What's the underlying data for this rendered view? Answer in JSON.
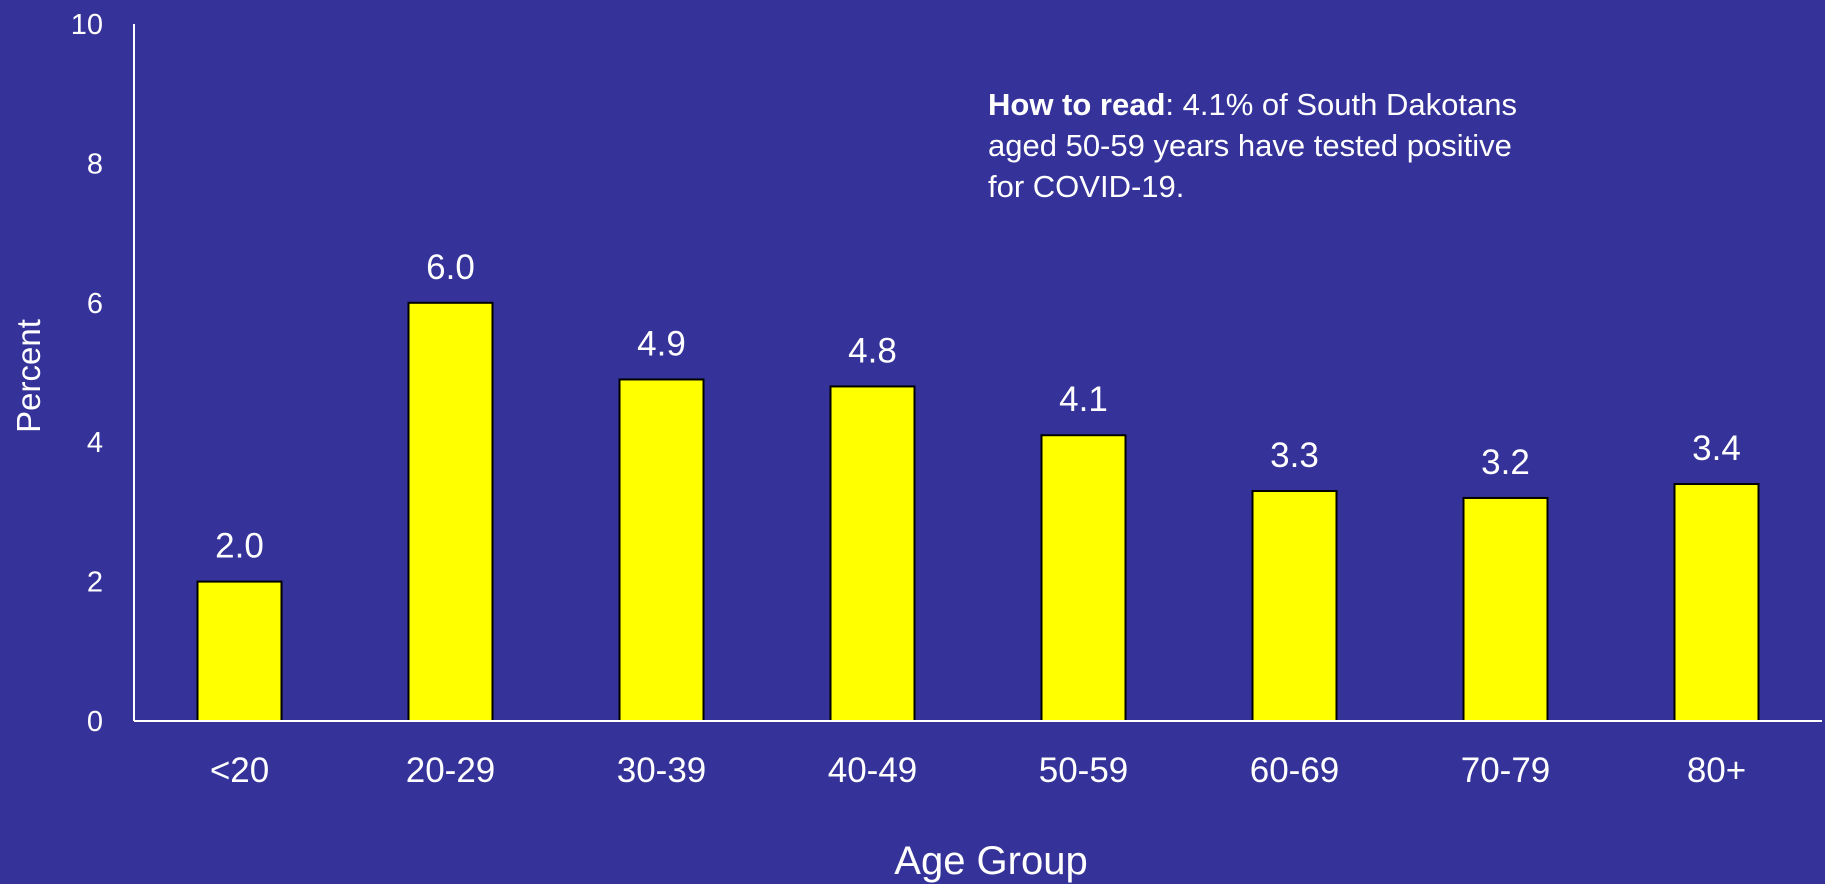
{
  "colors": {
    "background": "#353399",
    "bar_fill": "#ffff00",
    "bar_stroke": "#000000",
    "text": "#ffffff",
    "axis": "#ffffff"
  },
  "annotation": {
    "bold": "How to read",
    "text": ":  4.1% of South Dakotans aged 50-59 years have tested positive for COVID-19."
  },
  "chart_data": {
    "type": "bar",
    "title": "",
    "xlabel": "Age Group",
    "ylabel": "Percent",
    "categories": [
      "<20",
      "20-29",
      "30-39",
      "40-49",
      "50-59",
      "60-69",
      "70-79",
      "80+"
    ],
    "values": [
      2.0,
      6.0,
      4.9,
      4.8,
      4.1,
      3.3,
      3.2,
      3.4
    ],
    "value_labels": [
      "2.0",
      "6.0",
      "4.9",
      "4.8",
      "4.1",
      "3.3",
      "3.2",
      "3.4"
    ],
    "ylim": [
      0,
      10
    ],
    "yticks": [
      0,
      2,
      4,
      6,
      8,
      10
    ],
    "grid": false,
    "legend": "none"
  }
}
